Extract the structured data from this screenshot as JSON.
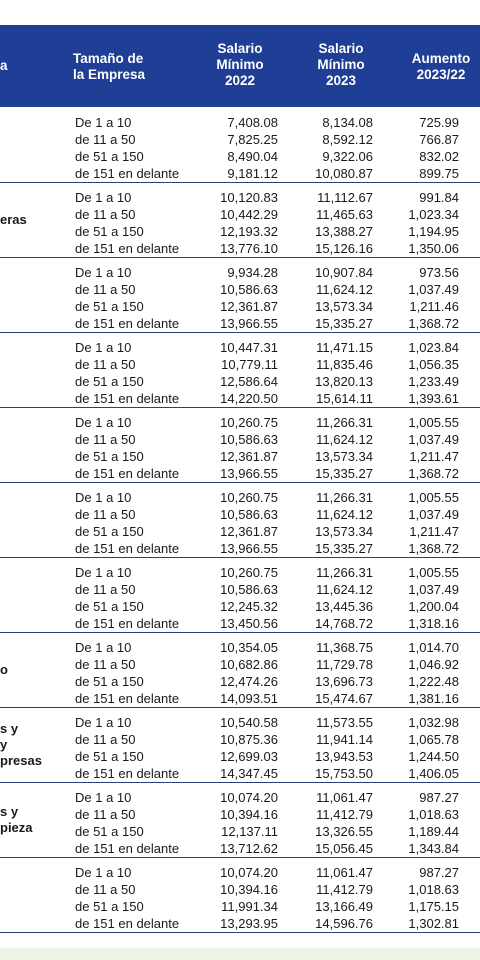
{
  "header": {
    "sector_fragment": "a",
    "size_line1": "Tamaño de",
    "size_line2": "la Empresa",
    "col2022_line1": "Salario",
    "col2022_line2": "Mínimo",
    "col2022_line3": "2022",
    "col2023_line1": "Salario",
    "col2023_line2": "Mínimo",
    "col2023_line3": "2023",
    "aumento_line1": "Aumento",
    "aumento_line2": "2023/22"
  },
  "groups": [
    {
      "sector_lines": [],
      "rows": [
        {
          "size": "De 1 a 10",
          "v2022": "7,408.08",
          "v2023": "8,134.08",
          "aumento": "725.99"
        },
        {
          "size": "de 11 a 50",
          "v2022": "7,825.25",
          "v2023": "8,592.12",
          "aumento": "766.87"
        },
        {
          "size": "de 51 a 150",
          "v2022": "8,490.04",
          "v2023": "9,322.06",
          "aumento": "832.02"
        },
        {
          "size": "de 151 en delante",
          "v2022": "9,181.12",
          "v2023": "10,080.87",
          "aumento": "899.75"
        }
      ]
    },
    {
      "sector_lines": [
        "eras"
      ],
      "rows": [
        {
          "size": "De 1 a 10",
          "v2022": "10,120.83",
          "v2023": "11,112.67",
          "aumento": "991.84"
        },
        {
          "size": "de 11 a 50",
          "v2022": "10,442.29",
          "v2023": "11,465.63",
          "aumento": "1,023.34"
        },
        {
          "size": "de 51 a 150",
          "v2022": "12,193.32",
          "v2023": "13,388.27",
          "aumento": "1,194.95"
        },
        {
          "size": "de 151 en delante",
          "v2022": "13,776.10",
          "v2023": "15,126.16",
          "aumento": "1,350.06"
        }
      ]
    },
    {
      "sector_lines": [],
      "rows": [
        {
          "size": "De 1 a 10",
          "v2022": "9,934.28",
          "v2023": "10,907.84",
          "aumento": "973.56"
        },
        {
          "size": "de 11 a 50",
          "v2022": "10,586.63",
          "v2023": "11,624.12",
          "aumento": "1,037.49"
        },
        {
          "size": "de 51 a 150",
          "v2022": "12,361.87",
          "v2023": "13,573.34",
          "aumento": "1,211.46"
        },
        {
          "size": "de 151 en delante",
          "v2022": "13,966.55",
          "v2023": "15,335.27",
          "aumento": "1,368.72"
        }
      ]
    },
    {
      "sector_lines": [],
      "rows": [
        {
          "size": "De 1 a 10",
          "v2022": "10,447.31",
          "v2023": "11,471.15",
          "aumento": "1,023.84"
        },
        {
          "size": "de 11 a 50",
          "v2022": "10,779.11",
          "v2023": "11,835.46",
          "aumento": "1,056.35"
        },
        {
          "size": "de 51 a 150",
          "v2022": "12,586.64",
          "v2023": "13,820.13",
          "aumento": "1,233.49"
        },
        {
          "size": "de 151 en delante",
          "v2022": "14,220.50",
          "v2023": "15,614.11",
          "aumento": "1,393.61"
        }
      ]
    },
    {
      "sector_lines": [],
      "rows": [
        {
          "size": "De 1 a 10",
          "v2022": "10,260.75",
          "v2023": "11,266.31",
          "aumento": "1,005.55"
        },
        {
          "size": "de 11 a 50",
          "v2022": "10,586.63",
          "v2023": "11,624.12",
          "aumento": "1,037.49"
        },
        {
          "size": "de 51 a 150",
          "v2022": "12,361.87",
          "v2023": "13,573.34",
          "aumento": "1,211.47"
        },
        {
          "size": "de 151 en delante",
          "v2022": "13,966.55",
          "v2023": "15,335.27",
          "aumento": "1,368.72"
        }
      ]
    },
    {
      "sector_lines": [],
      "rows": [
        {
          "size": "De 1 a 10",
          "v2022": "10,260.75",
          "v2023": "11,266.31",
          "aumento": "1,005.55"
        },
        {
          "size": "de 11 a 50",
          "v2022": "10,586.63",
          "v2023": "11,624.12",
          "aumento": "1,037.49"
        },
        {
          "size": "de 51 a 150",
          "v2022": "12,361.87",
          "v2023": "13,573.34",
          "aumento": "1,211.47"
        },
        {
          "size": "de 151 en delante",
          "v2022": "13,966.55",
          "v2023": "15,335.27",
          "aumento": "1,368.72"
        }
      ]
    },
    {
      "sector_lines": [],
      "rows": [
        {
          "size": "De 1 a 10",
          "v2022": "10,260.75",
          "v2023": "11,266.31",
          "aumento": "1,005.55"
        },
        {
          "size": "de 11 a 50",
          "v2022": "10,586.63",
          "v2023": "11,624.12",
          "aumento": "1,037.49"
        },
        {
          "size": "de 51 a 150",
          "v2022": "12,245.32",
          "v2023": "13,445.36",
          "aumento": "1,200.04"
        },
        {
          "size": "de 151 en delante",
          "v2022": "13,450.56",
          "v2023": "14,768.72",
          "aumento": "1,318.16"
        }
      ]
    },
    {
      "sector_lines": [
        "o"
      ],
      "rows": [
        {
          "size": "De 1 a 10",
          "v2022": "10,354.05",
          "v2023": "11,368.75",
          "aumento": "1,014.70"
        },
        {
          "size": "de 11 a 50",
          "v2022": "10,682.86",
          "v2023": "11,729.78",
          "aumento": "1,046.92"
        },
        {
          "size": "de 51 a 150",
          "v2022": "12,474.26",
          "v2023": "13,696.73",
          "aumento": "1,222.48"
        },
        {
          "size": "de 151 en delante",
          "v2022": "14,093.51",
          "v2023": "15,474.67",
          "aumento": "1,381.16"
        }
      ]
    },
    {
      "sector_lines": [
        "s y",
        "y",
        "presas"
      ],
      "rows": [
        {
          "size": "De 1 a 10",
          "v2022": "10,540.58",
          "v2023": "11,573.55",
          "aumento": "1,032.98"
        },
        {
          "size": "de 11 a 50",
          "v2022": "10,875.36",
          "v2023": "11,941.14",
          "aumento": "1,065.78"
        },
        {
          "size": "de 51 a 150",
          "v2022": "12,699.03",
          "v2023": "13,943.53",
          "aumento": "1,244.50"
        },
        {
          "size": "de 151 en delante",
          "v2022": "14,347.45",
          "v2023": "15,753.50",
          "aumento": "1,406.05"
        }
      ]
    },
    {
      "sector_lines": [
        "s y",
        "pieza"
      ],
      "rows": [
        {
          "size": "De 1 a 10",
          "v2022": "10,074.20",
          "v2023": "11,061.47",
          "aumento": "987.27"
        },
        {
          "size": "de 11 a 50",
          "v2022": "10,394.16",
          "v2023": "11,412.79",
          "aumento": "1,018.63"
        },
        {
          "size": "de 51 a 150",
          "v2022": "12,137.11",
          "v2023": "13,326.55",
          "aumento": "1,189.44"
        },
        {
          "size": "de 151 en delante",
          "v2022": "13,712.62",
          "v2023": "15,056.45",
          "aumento": "1,343.84"
        }
      ]
    },
    {
      "sector_lines": [],
      "rows": [
        {
          "size": "De 1 a 10",
          "v2022": "10,074.20",
          "v2023": "11,061.47",
          "aumento": "987.27"
        },
        {
          "size": "de 11 a 50",
          "v2022": "10,394.16",
          "v2023": "11,412.79",
          "aumento": "1,018.63"
        },
        {
          "size": "de 51 a 150",
          "v2022": "11,991.34",
          "v2023": "13,166.49",
          "aumento": "1,175.15"
        },
        {
          "size": "de 151 en delante",
          "v2022": "13,293.95",
          "v2023": "14,596.76",
          "aumento": "1,302.81"
        }
      ]
    }
  ]
}
